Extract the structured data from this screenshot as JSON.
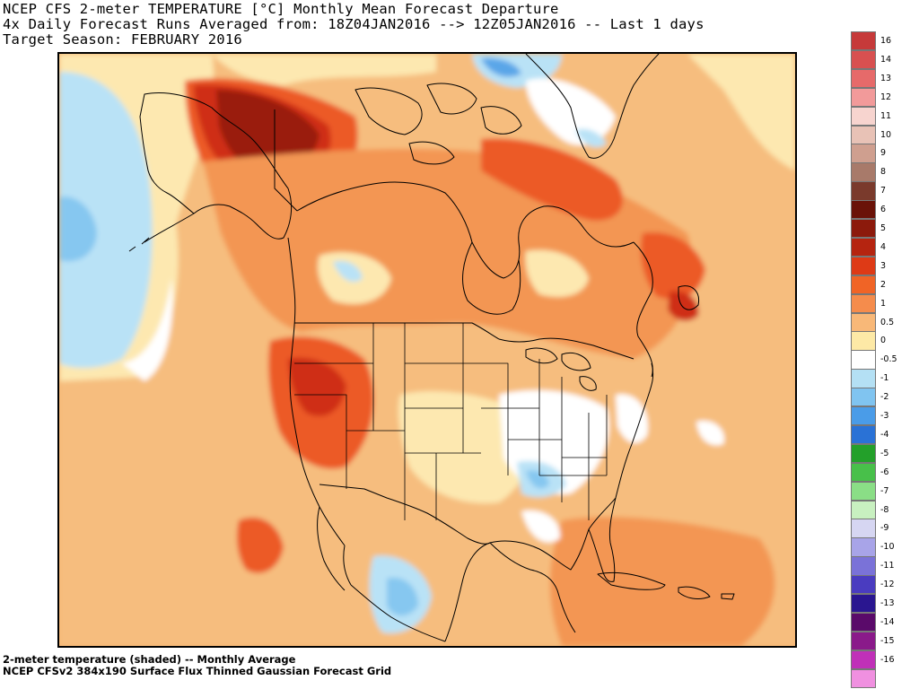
{
  "title": {
    "line1": "NCEP CFS 2-meter TEMPERATURE [°C] Monthly Mean Forecast Departure",
    "line2": "4x Daily Forecast Runs Averaged from: 18Z04JAN2016 --> 12Z05JAN2016 -- Last 1 days",
    "line3": "Target Season: FEBRUARY 2016"
  },
  "footer": {
    "line1": "2-meter temperature (shaded) -- Monthly Average",
    "line2": "NCEP CFSv2 384x190 Surface Flux Thinned Gaussian Forecast Grid"
  },
  "colorbar": {
    "levels": [
      {
        "label": "16",
        "color": "#c63a3a"
      },
      {
        "label": "14",
        "color": "#d85050"
      },
      {
        "label": "13",
        "color": "#e66a6a"
      },
      {
        "label": "12",
        "color": "#f29a9a"
      },
      {
        "label": "11",
        "color": "#f7d4cf"
      },
      {
        "label": "10",
        "color": "#e8c2b6"
      },
      {
        "label": "9",
        "color": "#cf9f8f"
      },
      {
        "label": "8",
        "color": "#a87a6a"
      },
      {
        "label": "7",
        "color": "#7a3a2c"
      },
      {
        "label": "6",
        "color": "#6a1208"
      },
      {
        "label": "5",
        "color": "#8c1a0c"
      },
      {
        "label": "4",
        "color": "#b52410"
      },
      {
        "label": "3",
        "color": "#de3a16"
      },
      {
        "label": "2",
        "color": "#f06426"
      },
      {
        "label": "1",
        "color": "#f58c4c"
      },
      {
        "label": "0.5",
        "color": "#f8b878"
      },
      {
        "label": "0",
        "color": "#fde9a6"
      },
      {
        "label": "-0.5",
        "color": "#ffffff"
      },
      {
        "label": "-1",
        "color": "#b4e0f4"
      },
      {
        "label": "-2",
        "color": "#80c4f0"
      },
      {
        "label": "-3",
        "color": "#4a9ce8"
      },
      {
        "label": "-4",
        "color": "#2a72d6"
      },
      {
        "label": "-5",
        "color": "#23a02a"
      },
      {
        "label": "-6",
        "color": "#48c04a"
      },
      {
        "label": "-7",
        "color": "#8ade86"
      },
      {
        "label": "-8",
        "color": "#c8f0c0"
      },
      {
        "label": "-9",
        "color": "#d6d6f2"
      },
      {
        "label": "-10",
        "color": "#a8a4e8"
      },
      {
        "label": "-11",
        "color": "#7a72d8"
      },
      {
        "label": "-12",
        "color": "#4a3cc0"
      },
      {
        "label": "-13",
        "color": "#2a1690"
      },
      {
        "label": "-14",
        "color": "#5a0a6a"
      },
      {
        "label": "-15",
        "color": "#8a1a8a"
      },
      {
        "label": "-16",
        "color": "#c030b8"
      },
      {
        "label": "",
        "color": "#f090e0"
      }
    ]
  },
  "map": {
    "region": "North America",
    "field": "2m temperature anomaly",
    "palette": {
      "ocean_base": "#f6bd7e",
      "light_orange": "#f8c58a",
      "orange": "#f39652",
      "red_orange": "#ec5a26",
      "red": "#cf2d14",
      "dark_red": "#9a1a0a",
      "near_zero": "#fde8b0",
      "white": "#ffffff",
      "light_blue": "#b9e2f6",
      "blue": "#86c7f0",
      "mid_blue": "#5aa6e8",
      "coast": "#000000"
    }
  }
}
